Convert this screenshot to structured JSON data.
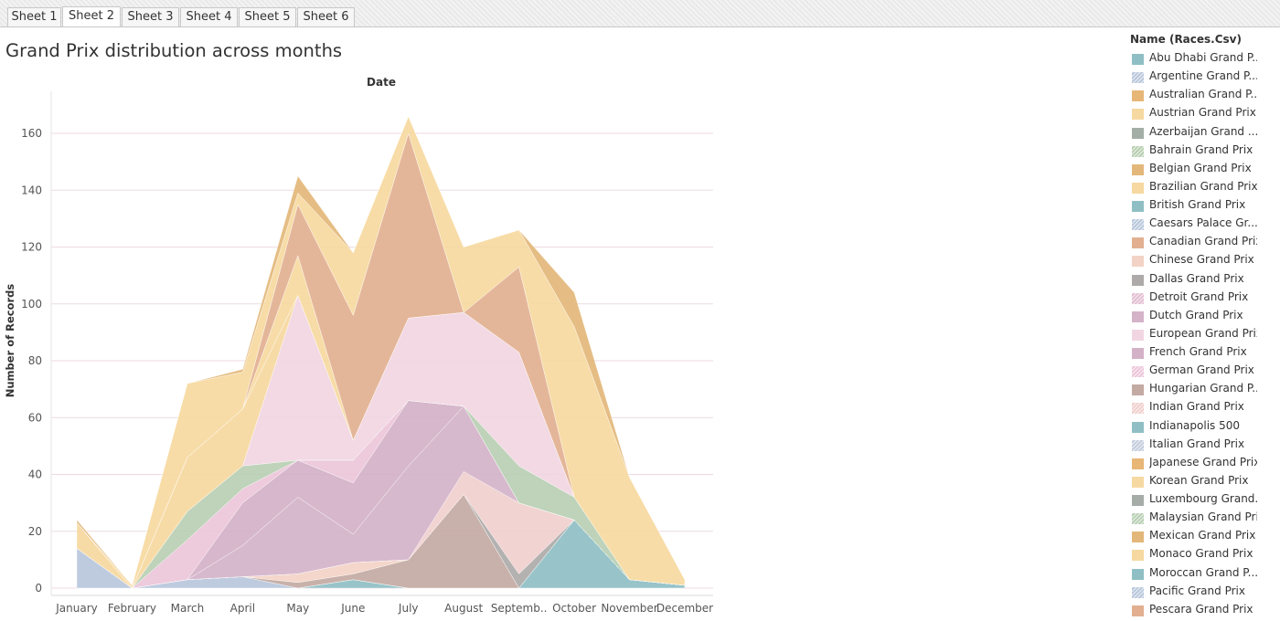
{
  "tabs": [
    {
      "label": "Sheet 1",
      "active": false
    },
    {
      "label": "Sheet 2",
      "active": true
    },
    {
      "label": "Sheet 3",
      "active": false
    },
    {
      "label": "Sheet 4",
      "active": false
    },
    {
      "label": "Sheet 5",
      "active": false
    },
    {
      "label": "Sheet 6",
      "active": false
    }
  ],
  "legend": {
    "title": "Name (Races.Csv)",
    "items": [
      {
        "label": "Abu Dhabi Grand P...",
        "color": "#8fbfc4",
        "pattern": "solid"
      },
      {
        "label": "Argentine Grand P...",
        "color": "#b9c7dc",
        "pattern": "hatch"
      },
      {
        "label": "Australian Grand P...",
        "color": "#e7b778",
        "pattern": "solid"
      },
      {
        "label": "Austrian Grand Prix",
        "color": "#f6d9a0",
        "pattern": "solid"
      },
      {
        "label": "Azerbaijan Grand ...",
        "color": "#a3aea6",
        "pattern": "solid"
      },
      {
        "label": "Bahrain Grand Prix",
        "color": "#b8cfb1",
        "pattern": "hatch"
      },
      {
        "label": "Belgian Grand Prix",
        "color": "#e3b77a",
        "pattern": "solid"
      },
      {
        "label": "Brazilian Grand Prix",
        "color": "#f6d8a0",
        "pattern": "solid"
      },
      {
        "label": "British Grand Prix",
        "color": "#8fbfc4",
        "pattern": "solid"
      },
      {
        "label": "Caesars Palace Gr...",
        "color": "#b8c7dc",
        "pattern": "hatch"
      },
      {
        "label": "Canadian Grand Prix",
        "color": "#e2b090",
        "pattern": "solid"
      },
      {
        "label": "Chinese Grand Prix",
        "color": "#f3d3c5",
        "pattern": "solid"
      },
      {
        "label": "Dallas Grand Prix",
        "color": "#aeaaaa",
        "pattern": "solid"
      },
      {
        "label": "Detroit Grand Prix",
        "color": "#e3bfd2",
        "pattern": "hatch"
      },
      {
        "label": "Dutch Grand Prix",
        "color": "#d4b3c9",
        "pattern": "solid"
      },
      {
        "label": "European Grand Prix",
        "color": "#f1d6e2",
        "pattern": "solid"
      },
      {
        "label": "French Grand Prix",
        "color": "#d3b1c7",
        "pattern": "solid"
      },
      {
        "label": "German Grand Prix",
        "color": "#ecc6d9",
        "pattern": "hatch"
      },
      {
        "label": "Hungarian Grand P...",
        "color": "#c3aaa3",
        "pattern": "solid"
      },
      {
        "label": "Indian Grand Prix",
        "color": "#f0cfcd",
        "pattern": "hatch"
      },
      {
        "label": "Indianapolis 500",
        "color": "#8fbfc4",
        "pattern": "solid"
      },
      {
        "label": "Italian Grand Prix",
        "color": "#c3cddd",
        "pattern": "hatch"
      },
      {
        "label": "Japanese Grand Prix",
        "color": "#e8b675",
        "pattern": "solid"
      },
      {
        "label": "Korean Grand Prix",
        "color": "#f6d9a2",
        "pattern": "solid"
      },
      {
        "label": "Luxembourg Grand...",
        "color": "#a6ada8",
        "pattern": "solid"
      },
      {
        "label": "Malaysian Grand Prix",
        "color": "#b8cfb3",
        "pattern": "hatch"
      },
      {
        "label": "Mexican Grand Prix",
        "color": "#e3b77a",
        "pattern": "solid"
      },
      {
        "label": "Monaco Grand Prix",
        "color": "#f6d9a0",
        "pattern": "solid"
      },
      {
        "label": "Moroccan Grand P...",
        "color": "#8fbfc4",
        "pattern": "solid"
      },
      {
        "label": "Pacific Grand Prix",
        "color": "#b8c7dc",
        "pattern": "hatch"
      },
      {
        "label": "Pescara Grand Prix",
        "color": "#e2b090",
        "pattern": "solid"
      }
    ]
  },
  "chart_data": {
    "type": "area",
    "title": "Grand Prix distribution across months",
    "xlabel": "Date",
    "ylabel": "Number of Records",
    "categories": [
      "January",
      "February",
      "March",
      "April",
      "May",
      "June",
      "July",
      "August",
      "September",
      "October",
      "November",
      "December"
    ],
    "ylim": [
      0,
      170
    ],
    "yticks": [
      0,
      20,
      40,
      60,
      80,
      100,
      120,
      140,
      160
    ],
    "grid": true,
    "stacked": true,
    "total": [
      24,
      1,
      72,
      77,
      145,
      118,
      166,
      120,
      126,
      104,
      39,
      3
    ],
    "series": [
      {
        "name": "Indianapolis 500",
        "values": [
          0,
          0,
          0,
          0,
          0,
          0,
          0,
          0,
          0,
          0,
          0,
          0
        ]
      },
      {
        "name": "British Grand Prix",
        "values": [
          0,
          0,
          0,
          0,
          0,
          3,
          0,
          0,
          0,
          0,
          0,
          0
        ]
      },
      {
        "name": "Moroccan Grand P...",
        "values": [
          0,
          0,
          0,
          0,
          0,
          0,
          0,
          0,
          0,
          24,
          3,
          1
        ]
      },
      {
        "name": "Abu Dhabi Grand P...",
        "values": [
          0,
          0,
          0,
          0,
          0,
          0,
          0,
          0,
          0,
          0,
          0,
          0
        ]
      },
      {
        "name": "Argentine Grand P...",
        "values": [
          14,
          0,
          3,
          4,
          0,
          0,
          0,
          0,
          0,
          0,
          0,
          0
        ]
      },
      {
        "name": "Hungarian Grand P...",
        "values": [
          0,
          0,
          0,
          0,
          2,
          2,
          10,
          33,
          0,
          0,
          0,
          0
        ]
      },
      {
        "name": "Chinese Grand Prix",
        "values": [
          0,
          0,
          0,
          0,
          3,
          4,
          0,
          0,
          0,
          0,
          0,
          0
        ]
      },
      {
        "name": "Dallas Grand Prix",
        "values": [
          0,
          0,
          0,
          0,
          0,
          0,
          0,
          0,
          5,
          0,
          0,
          0
        ]
      },
      {
        "name": "Indian Grand Prix",
        "values": [
          0,
          0,
          0,
          0,
          0,
          0,
          0,
          8,
          25,
          0,
          0,
          0
        ]
      },
      {
        "name": "Dutch Grand Prix",
        "values": [
          0,
          0,
          0,
          11,
          27,
          10,
          33,
          23,
          0,
          0,
          0,
          0
        ]
      },
      {
        "name": "French Grand Prix",
        "values": [
          0,
          0,
          0,
          15,
          13,
          18,
          23,
          0,
          0,
          0,
          0,
          0
        ]
      },
      {
        "name": "German Grand Prix",
        "values": [
          0,
          0,
          14,
          5,
          0,
          8,
          0,
          0,
          0,
          0,
          0,
          0
        ]
      },
      {
        "name": "Malaysian Grand Prix",
        "values": [
          0,
          0,
          10,
          8,
          0,
          0,
          0,
          0,
          13,
          8,
          0,
          0
        ]
      },
      {
        "name": "European Grand Prix",
        "values": [
          0,
          0,
          0,
          0,
          58,
          7,
          29,
          33,
          40,
          0,
          0,
          0
        ]
      },
      {
        "name": "Brazilian Grand Prix",
        "values": [
          9,
          0,
          19,
          20,
          0,
          0,
          0,
          0,
          0,
          0,
          0,
          0
        ]
      },
      {
        "name": "Monaco Grand Prix",
        "values": [
          0,
          0,
          0,
          0,
          14,
          0,
          0,
          0,
          0,
          0,
          0,
          0
        ]
      },
      {
        "name": "Canadian Grand Prix",
        "values": [
          0,
          0,
          0,
          0,
          18,
          44,
          65,
          0,
          30,
          0,
          0,
          0
        ]
      },
      {
        "name": "Austrian Grand Prix",
        "values": [
          0,
          1,
          26,
          13,
          4,
          22,
          6,
          23,
          13,
          60,
          36,
          2
        ]
      },
      {
        "name": "Belgian Grand Prix",
        "values": [
          1,
          0,
          0,
          1,
          6,
          0,
          0,
          0,
          0,
          12,
          0,
          0
        ]
      }
    ]
  }
}
